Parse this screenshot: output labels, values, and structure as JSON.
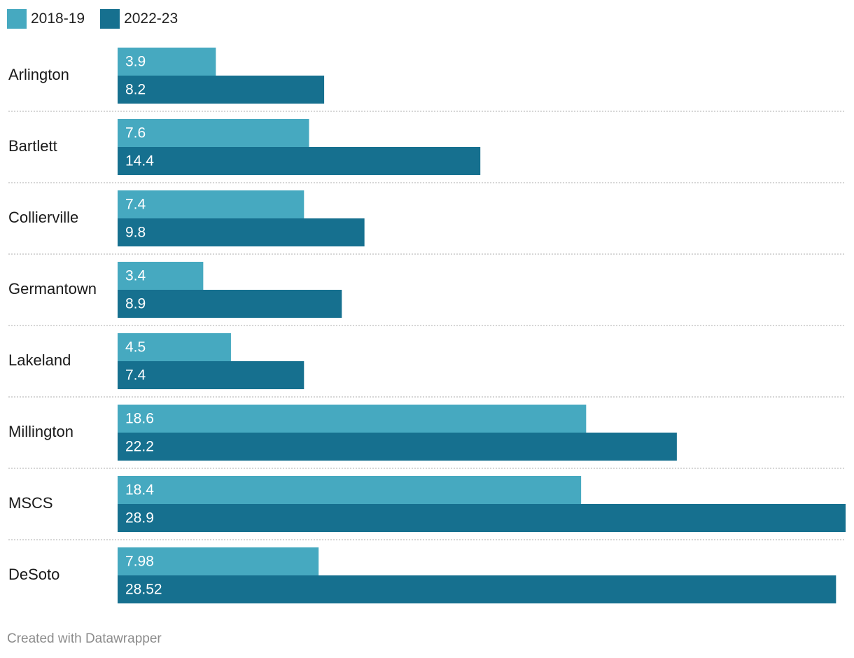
{
  "legend": [
    {
      "label": "2018-19",
      "color": "#46a9c0"
    },
    {
      "label": "2022-23",
      "color": "#16708f"
    }
  ],
  "chart_data": {
    "type": "bar",
    "orientation": "horizontal",
    "grouped": true,
    "categories": [
      "Arlington",
      "Bartlett",
      "Collierville",
      "Germantown",
      "Lakeland",
      "Millington",
      "MSCS",
      "DeSoto"
    ],
    "series": [
      {
        "name": "2018-19",
        "color": "#46a9c0",
        "values": [
          3.9,
          7.6,
          7.4,
          3.4,
          4.5,
          18.6,
          18.4,
          7.98
        ],
        "labels": [
          "3.9",
          "7.6",
          "7.4",
          "3.4",
          "4.5",
          "18.6",
          "18.4",
          "7.98"
        ]
      },
      {
        "name": "2022-23",
        "color": "#16708f",
        "values": [
          8.2,
          14.4,
          9.8,
          8.9,
          7.4,
          22.2,
          28.9,
          28.52
        ],
        "labels": [
          "8.2",
          "14.4",
          "9.8",
          "8.9",
          "7.4",
          "22.2",
          "28.9",
          "28.52"
        ]
      }
    ],
    "xlim": [
      0,
      28.9
    ],
    "grid": false,
    "separator_color": "#c8c8c8",
    "legend_position": "top-left"
  },
  "footer": {
    "credit": "Created with Datawrapper"
  }
}
